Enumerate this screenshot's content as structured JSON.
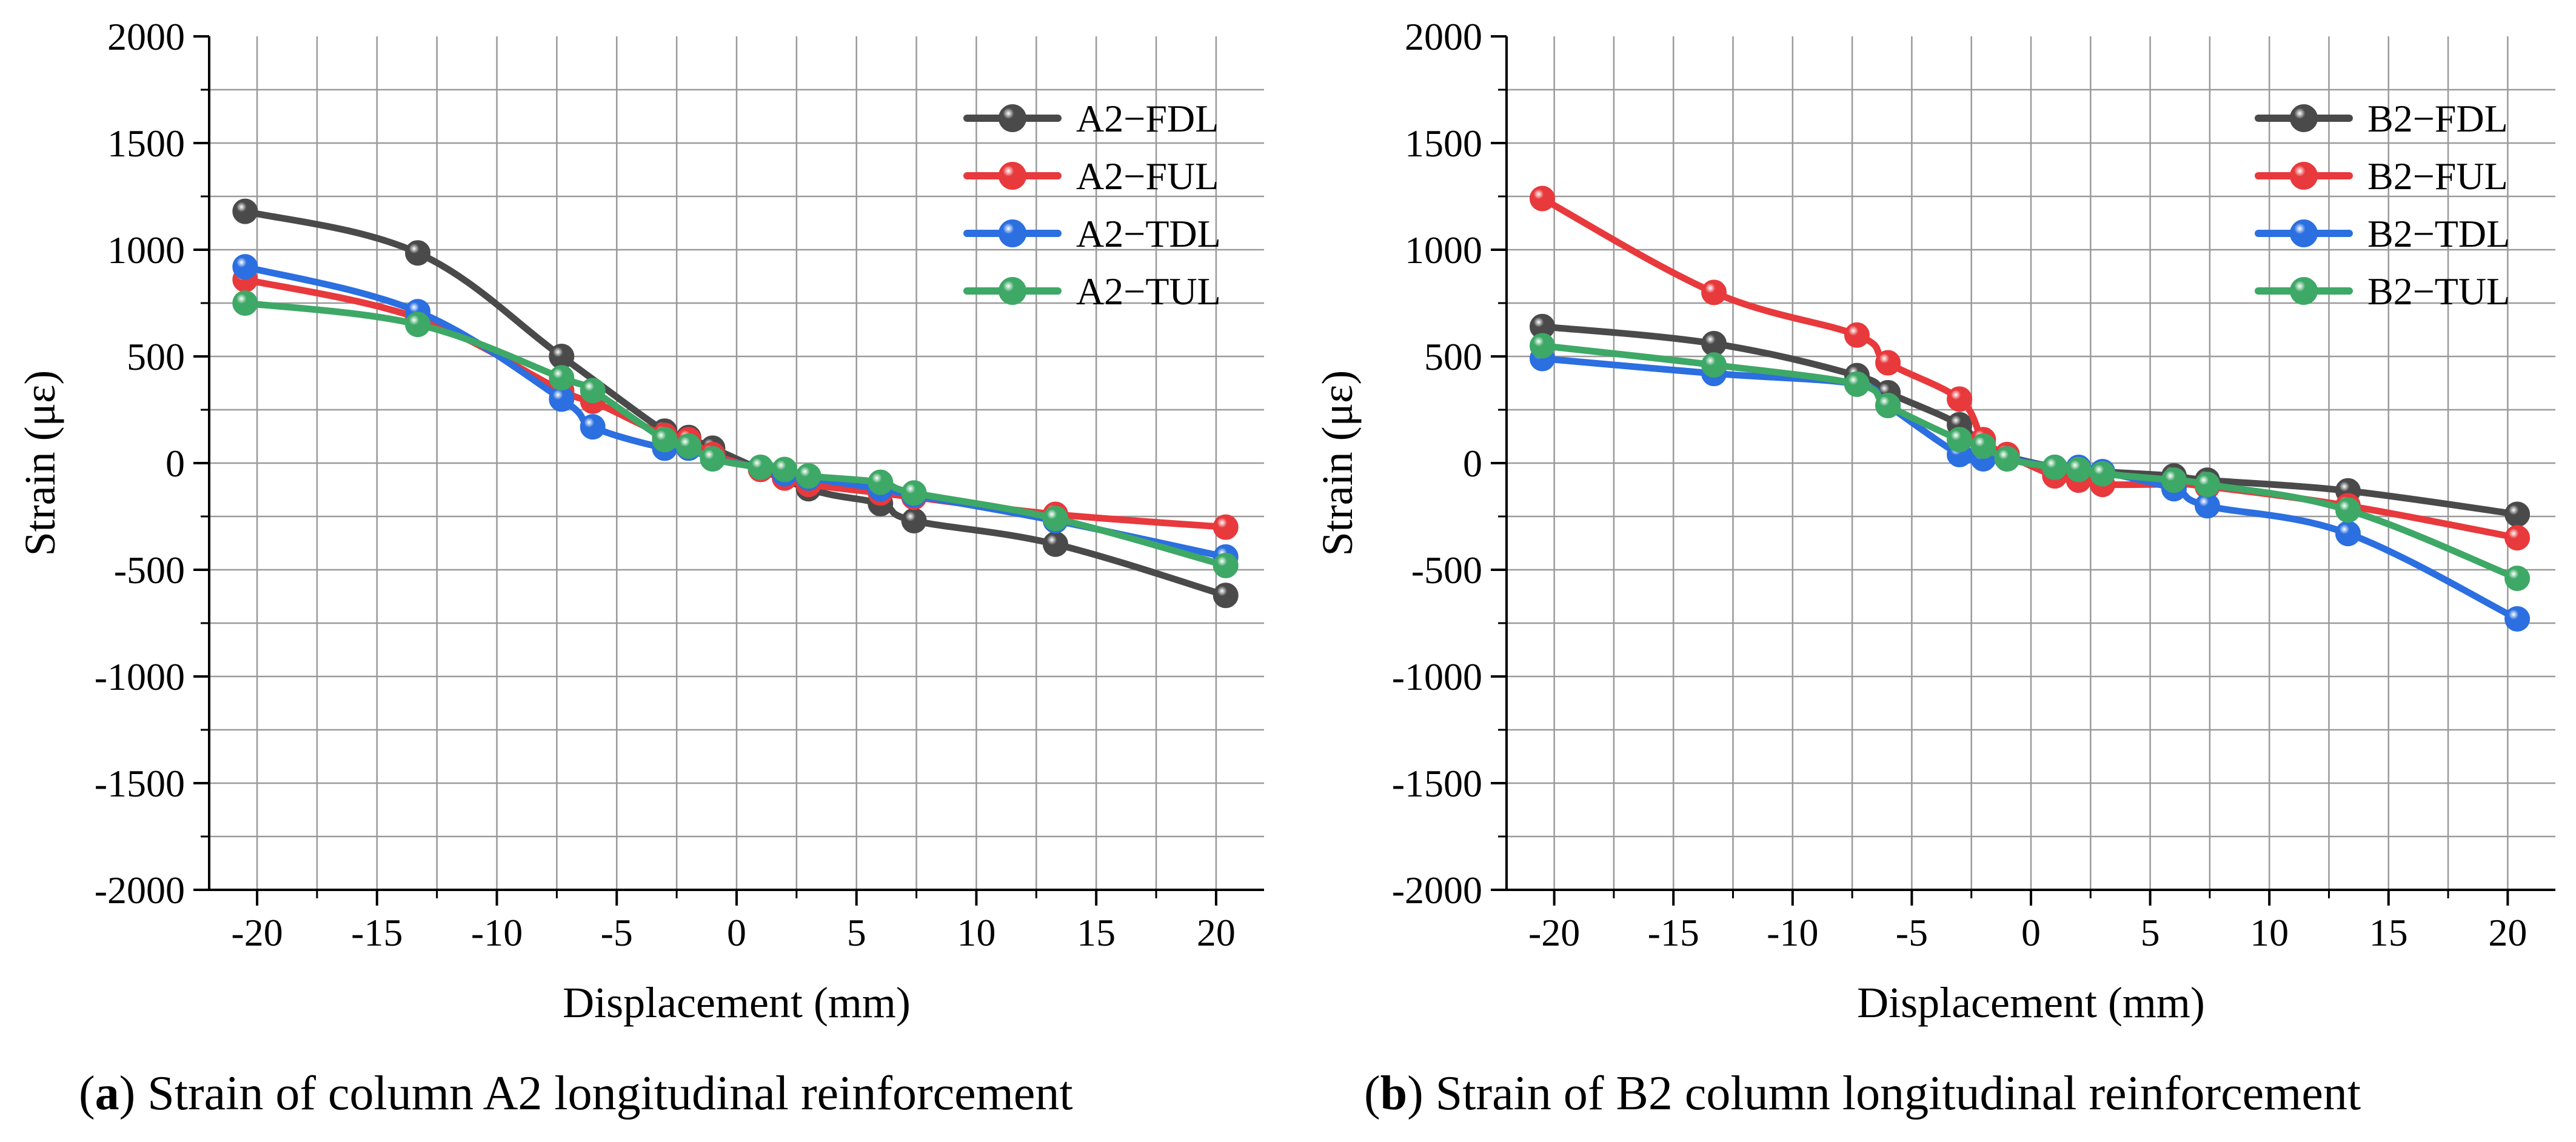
{
  "chart_data": [
    {
      "type": "line",
      "panel": "a",
      "caption_letter": "(a)",
      "caption_text": " Strain of column A2 longitudinal reinforcement",
      "xlabel": "Displacement (mm)",
      "ylabel": "Strain (με)",
      "xlim": [
        -22,
        22
      ],
      "ylim": [
        -2000,
        2000
      ],
      "xticks": [
        -20,
        -15,
        -10,
        -5,
        0,
        5,
        10,
        15,
        20
      ],
      "xtick_labels": [
        "-20",
        "-15",
        "-10",
        "-5",
        "0",
        "5",
        "10",
        "15",
        "20"
      ],
      "yticks": [
        2000,
        1500,
        1000,
        500,
        0,
        -500,
        -1000,
        -1500,
        -2000
      ],
      "ytick_labels": [
        "2000",
        "1500",
        "1000",
        "500",
        "0",
        "-500",
        "-1000",
        "-1500",
        "-2000"
      ],
      "grid": true,
      "legend_position": "top-right",
      "series": [
        {
          "name": "A2−FDL",
          "color": "#4a4a4a",
          "x": [
            -20.5,
            -13.3,
            -7.3,
            -3.0,
            -2.0,
            -1.0,
            3.0,
            6.0,
            7.4,
            13.3,
            20.4
          ],
          "values": [
            1180,
            985,
            500,
            150,
            120,
            70,
            -120,
            -190,
            -270,
            -380,
            -620
          ]
        },
        {
          "name": "A2−FUL",
          "color": "#e8393c",
          "x": [
            -20.5,
            -13.3,
            -7.3,
            -6.0,
            -3.0,
            -2.0,
            -1.0,
            1.0,
            2.0,
            3.0,
            6.0,
            7.4,
            13.3,
            20.4
          ],
          "values": [
            860,
            680,
            340,
            290,
            130,
            110,
            40,
            -30,
            -70,
            -100,
            -140,
            -160,
            -240,
            -300
          ]
        },
        {
          "name": "A2−TDL",
          "color": "#2b6fe0",
          "x": [
            -20.5,
            -13.3,
            -7.3,
            -6.0,
            -3.0,
            -2.0,
            -1.0,
            1.0,
            2.0,
            3.0,
            6.0,
            7.4,
            13.3,
            20.4
          ],
          "values": [
            920,
            710,
            300,
            170,
            70,
            70,
            20,
            -20,
            -50,
            -70,
            -120,
            -150,
            -270,
            -440
          ]
        },
        {
          "name": "A2−TUL",
          "color": "#3ea866",
          "x": [
            -20.5,
            -13.3,
            -7.3,
            -6.0,
            -3.0,
            -2.0,
            -1.0,
            1.0,
            2.0,
            3.0,
            6.0,
            7.4,
            13.3,
            20.4
          ],
          "values": [
            750,
            650,
            400,
            340,
            110,
            80,
            20,
            -20,
            -30,
            -60,
            -90,
            -140,
            -260,
            -480
          ]
        }
      ]
    },
    {
      "type": "line",
      "panel": "b",
      "caption_letter": "(b)",
      "caption_text": " Strain of B2 column longitudinal reinforcement",
      "xlabel": "Displacement (mm)",
      "ylabel": "Strain (με)",
      "xlim": [
        -22,
        22
      ],
      "ylim": [
        -2000,
        2000
      ],
      "xticks": [
        -20,
        -15,
        -10,
        -5,
        0,
        5,
        10,
        15,
        20
      ],
      "xtick_labels": [
        "-20",
        "-15",
        "-10",
        "-5",
        "0",
        "5",
        "10",
        "15",
        "20"
      ],
      "yticks": [
        2000,
        1500,
        1000,
        500,
        0,
        -500,
        -1000,
        -1500,
        -2000
      ],
      "ytick_labels": [
        "2000",
        "1500",
        "1000",
        "500",
        "0",
        "-500",
        "-1000",
        "-1500",
        "-2000"
      ],
      "grid": true,
      "legend_position": "top-right",
      "series": [
        {
          "name": "B2−FDL",
          "color": "#4a4a4a",
          "x": [
            -20.5,
            -13.3,
            -7.3,
            -6.0,
            -3.0,
            -2.0,
            -1.0,
            1.0,
            2.0,
            3.0,
            6.0,
            7.4,
            13.3,
            20.4
          ],
          "values": [
            640,
            560,
            410,
            330,
            180,
            60,
            30,
            -20,
            -30,
            -40,
            -60,
            -80,
            -130,
            -240
          ]
        },
        {
          "name": "B2−FUL",
          "color": "#e8393c",
          "x": [
            -20.5,
            -13.3,
            -7.3,
            -6.0,
            -3.0,
            -2.0,
            -1.0,
            1.0,
            2.0,
            3.0,
            6.0,
            7.4,
            13.3,
            20.4
          ],
          "values": [
            1240,
            800,
            600,
            470,
            300,
            110,
            40,
            -60,
            -80,
            -100,
            -100,
            -110,
            -200,
            -350
          ]
        },
        {
          "name": "B2−TDL",
          "color": "#2b6fe0",
          "x": [
            -20.5,
            -13.3,
            -7.3,
            -6.0,
            -3.0,
            -2.0,
            -1.0,
            1.0,
            2.0,
            3.0,
            6.0,
            7.4,
            13.3,
            20.4
          ],
          "values": [
            490,
            420,
            370,
            270,
            40,
            20,
            20,
            -20,
            -20,
            -40,
            -120,
            -200,
            -330,
            -730
          ]
        },
        {
          "name": "B2−TUL",
          "color": "#3ea866",
          "x": [
            -20.5,
            -13.3,
            -7.3,
            -6.0,
            -3.0,
            -2.0,
            -1.0,
            1.0,
            2.0,
            3.0,
            6.0,
            7.4,
            13.3,
            20.4
          ],
          "values": [
            550,
            460,
            370,
            270,
            110,
            80,
            20,
            -20,
            -30,
            -50,
            -80,
            -100,
            -220,
            -540
          ]
        }
      ]
    }
  ]
}
